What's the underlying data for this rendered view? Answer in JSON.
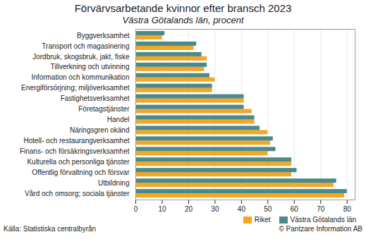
{
  "chart_data": {
    "type": "bar",
    "orientation": "horizontal",
    "title": "Förvärvsarbetande kvinnor efter bransch 2023",
    "subtitle": "Västra Götalands län, procent",
    "categories": [
      "Byggverksamhet",
      "Transport och magasinering",
      "Jordbruk, skogsbruk, jakt, fiske",
      "Tillverkning och utvinning",
      "Information och kommunikation",
      "Energiförsörjning; miljöverksamhet",
      "Fastighetsverksamhet",
      "Företagstjänster",
      "Handel",
      "Näringsgren okänd",
      "Hotell- och restaurangverksamhet",
      "Finans- och försäkringsverksamhet",
      "Kulturella och personliga tjänster",
      "Offentlig förvaltning och försvar",
      "Utbildning",
      "Vård och omsorg; sociala tjänster"
    ],
    "series": [
      {
        "name": "Riket",
        "color": "#f5a623",
        "values": [
          10,
          22,
          27,
          26,
          30,
          29,
          41,
          44,
          45,
          50,
          51,
          50,
          59,
          59,
          75,
          79
        ]
      },
      {
        "name": "Västra Götalands län",
        "color": "#4a8a8c",
        "values": [
          11,
          23,
          25,
          27,
          28,
          29,
          41,
          41,
          45,
          47,
          52,
          53,
          59,
          61,
          76,
          80
        ]
      }
    ],
    "xlim": [
      0,
      83
    ],
    "xticks": [
      0,
      10,
      20,
      30,
      40,
      50,
      60,
      70,
      80
    ],
    "grid": true,
    "legend": "lower right",
    "annotations": [
      "Källa: Statistiska centralbyrån",
      "© Pantzare Information AB"
    ]
  }
}
